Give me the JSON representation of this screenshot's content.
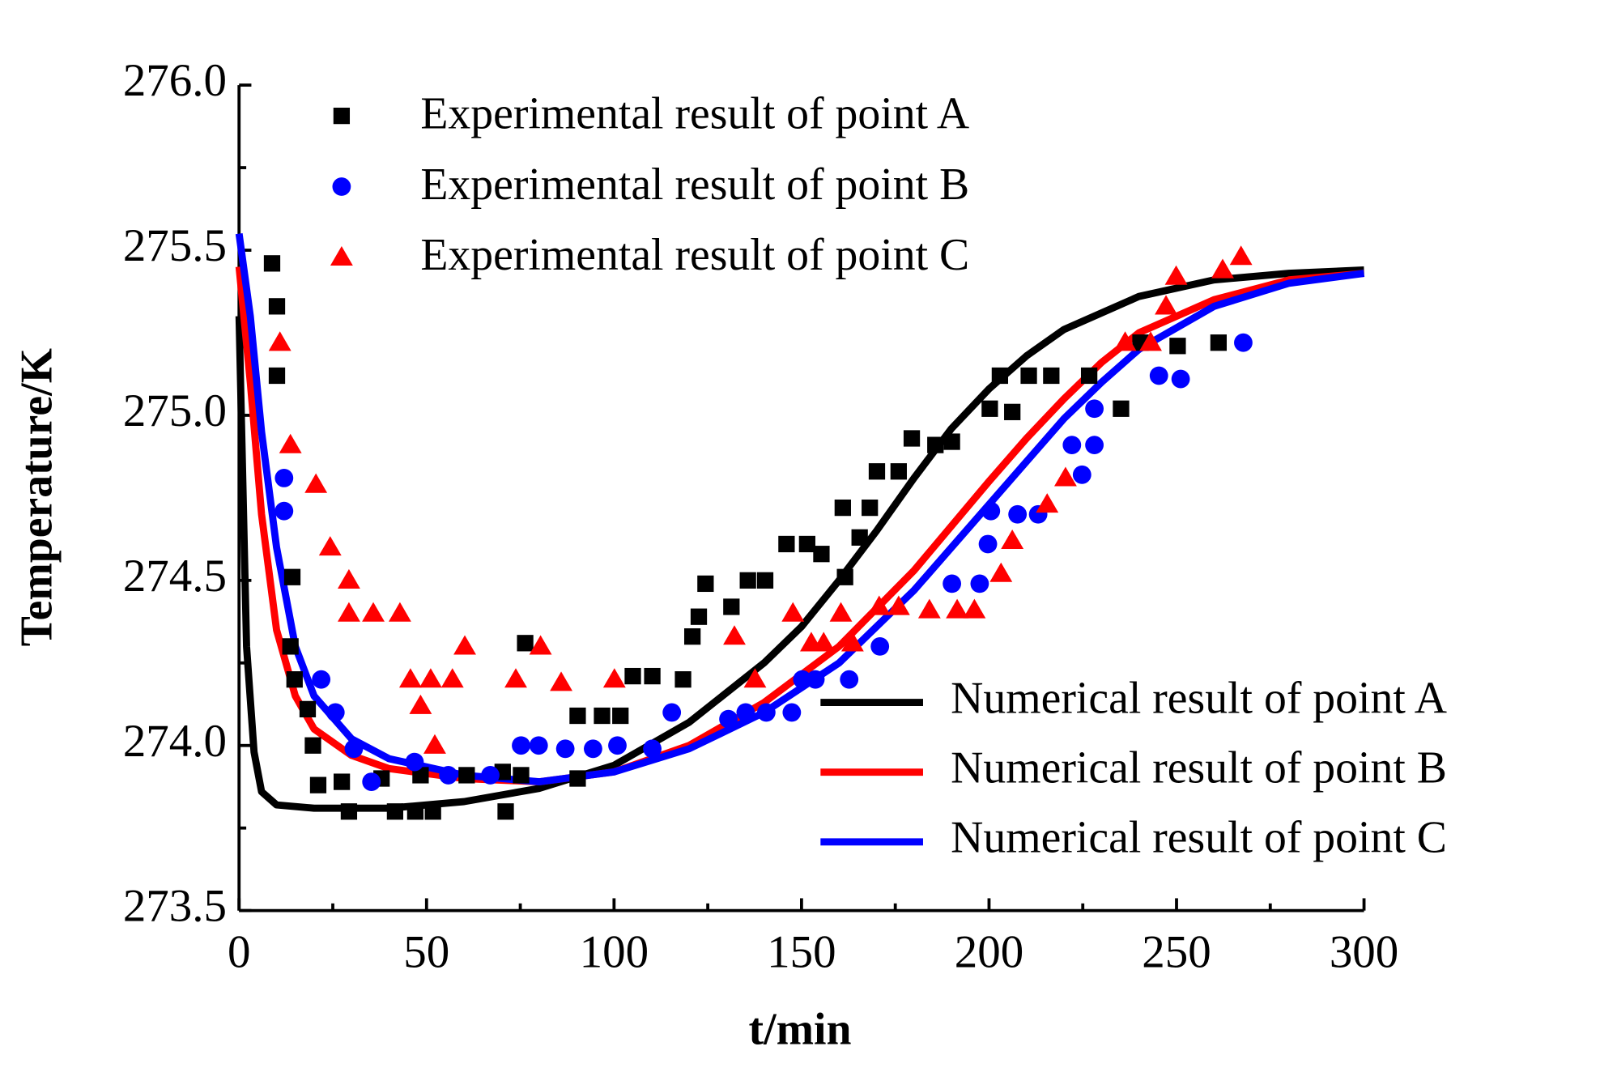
{
  "chart_data": {
    "type": "scatter",
    "x_label": "t/min",
    "y_label": "Temperature/K",
    "xlim": [
      0,
      300
    ],
    "ylim": [
      273.5,
      276
    ],
    "xticks": [
      0,
      50,
      100,
      150,
      200,
      250,
      300
    ],
    "yticks": [
      {
        "value": 273.5,
        "label": "273.5"
      },
      {
        "value": 274,
        "label": "274.0"
      },
      274.5,
      {
        "value": 275,
        "label": "275.0"
      },
      275.5,
      {
        "value": 276,
        "label": "276.0"
      }
    ],
    "series": [
      {
        "name": "Experimental result of point A",
        "kind": "scatter",
        "marker": "square",
        "color": "#000000",
        "x": [
          8.8,
          10.1,
          10.1,
          14.2,
          13.7,
          14.8,
          18.3,
          19.7,
          21.1,
          27.4,
          29.3,
          38.0,
          41.6,
          47.0,
          51.7,
          48.4,
          60.7,
          70.3,
          71.1,
          75.2,
          76.3,
          90.3,
          90.3,
          96.8,
          101.7,
          105,
          110.2,
          118.4,
          120.9,
          122.6,
          124.4,
          131.3,
          135.7,
          140.3,
          146.0,
          151.5,
          155.3,
          161,
          161.6,
          165.5,
          168.2,
          170.1,
          175.9,
          179.4,
          185.7,
          190.1,
          200.2,
          202.9,
          206.2,
          210.6,
          216.6,
          226.7,
          235.2,
          240.4,
          250.3,
          261.2
        ],
        "values": [
          275.46,
          275.33,
          275.12,
          274.51,
          274.3,
          274.2,
          274.11,
          274.0,
          273.88,
          273.89,
          273.8,
          273.9,
          273.8,
          273.8,
          273.8,
          273.91,
          273.91,
          273.92,
          273.8,
          273.91,
          274.31,
          273.9,
          274.09,
          274.09,
          274.09,
          274.21,
          274.21,
          274.2,
          274.33,
          274.39,
          274.49,
          274.42,
          274.5,
          274.5,
          274.61,
          274.61,
          274.58,
          274.72,
          274.51,
          274.63,
          274.72,
          274.83,
          274.83,
          274.93,
          274.91,
          274.92,
          275.02,
          275.12,
          275.01,
          275.12,
          275.12,
          275.12,
          275.02,
          275.22,
          275.21,
          275.22
        ]
      },
      {
        "name": "Experimental result of point B",
        "kind": "scatter",
        "marker": "circle",
        "color": "#0000ff",
        "x": [
          12.0,
          12.0,
          21.9,
          25.7,
          30.6,
          35.3,
          46.8,
          55.8,
          67.0,
          75.2,
          79.9,
          87.0,
          94.4,
          100.9,
          110.2,
          115.4,
          130.5,
          135.1,
          140.6,
          147.4,
          150.2,
          153.7,
          162.7,
          170.9,
          190.1,
          197.5,
          199.7,
          200.5,
          207.6,
          213.1,
          222.1,
          224.8,
          228.1,
          228.1,
          245.3,
          251.1,
          267.8
        ],
        "values": [
          274.81,
          274.71,
          274.2,
          274.1,
          273.99,
          273.89,
          273.95,
          273.91,
          273.91,
          274.0,
          274.0,
          273.99,
          273.99,
          274.0,
          273.99,
          274.1,
          274.08,
          274.1,
          274.1,
          274.1,
          274.2,
          274.2,
          274.2,
          274.3,
          274.49,
          274.49,
          274.61,
          274.71,
          274.7,
          274.7,
          274.91,
          274.82,
          274.91,
          275.02,
          275.12,
          275.11,
          275.22
        ]
      },
      {
        "name": "Experimental result of point C",
        "kind": "scatter",
        "marker": "triangle",
        "color": "#ff0000",
        "x": [
          10.9,
          13.7,
          20.5,
          24.3,
          29.3,
          29.3,
          35.8,
          42.9,
          45.7,
          48.4,
          51.1,
          52.2,
          56.9,
          60.2,
          73.8,
          80.4,
          85.9,
          100.1,
          132.1,
          137.6,
          147.7,
          152.6,
          155.9,
          160.5,
          163.6,
          170.7,
          175.9,
          184.1,
          191.5,
          196.1,
          203.2,
          206.2,
          215.5,
          220.4,
          236.3,
          243.1,
          247.2,
          249.9,
          262.3,
          267.2
        ],
        "values": [
          275.22,
          274.91,
          274.79,
          274.6,
          274.5,
          274.4,
          274.4,
          274.4,
          274.2,
          274.12,
          274.2,
          274.0,
          274.2,
          274.3,
          274.2,
          274.3,
          274.19,
          274.2,
          274.33,
          274.2,
          274.4,
          274.31,
          274.31,
          274.4,
          274.31,
          274.42,
          274.42,
          274.41,
          274.41,
          274.41,
          274.52,
          274.62,
          274.73,
          274.81,
          275.22,
          275.22,
          275.33,
          275.42,
          275.44,
          275.48
        ]
      },
      {
        "name": "Numerical result of point A",
        "kind": "line",
        "color": "#000000",
        "x": [
          0,
          1,
          2,
          4,
          6,
          10,
          20,
          40,
          60,
          80,
          100,
          120,
          140,
          150,
          160,
          170,
          180,
          190,
          200,
          210,
          220,
          240,
          260,
          280,
          300
        ],
        "values": [
          275.3,
          274.8,
          274.3,
          273.98,
          273.86,
          273.82,
          273.81,
          273.81,
          273.83,
          273.87,
          273.94,
          274.07,
          274.25,
          274.36,
          274.5,
          274.65,
          274.81,
          274.96,
          275.08,
          275.18,
          275.26,
          275.36,
          275.41,
          275.43,
          275.44
        ]
      },
      {
        "name": "Numerical result of point B",
        "kind": "line",
        "color": "#ff0000",
        "x": [
          0,
          3,
          6,
          10,
          15,
          20,
          30,
          40,
          60,
          80,
          100,
          120,
          140,
          160,
          180,
          200,
          210,
          220,
          230,
          240,
          260,
          280,
          300
        ],
        "values": [
          275.45,
          275.1,
          274.7,
          274.35,
          274.15,
          274.05,
          273.97,
          273.93,
          273.9,
          273.89,
          273.92,
          274.0,
          274.13,
          274.3,
          274.53,
          274.8,
          274.93,
          275.05,
          275.16,
          275.25,
          275.35,
          275.41,
          275.43
        ]
      },
      {
        "name": "Numerical result of point C",
        "kind": "line",
        "color": "#0000ff",
        "x": [
          0,
          3,
          6,
          10,
          15,
          20,
          30,
          40,
          60,
          80,
          100,
          120,
          140,
          160,
          180,
          200,
          210,
          220,
          230,
          240,
          260,
          280,
          300
        ],
        "values": [
          275.55,
          275.3,
          274.95,
          274.6,
          274.3,
          274.15,
          274.02,
          273.96,
          273.91,
          273.89,
          273.92,
          273.99,
          274.1,
          274.25,
          274.47,
          274.73,
          274.86,
          274.99,
          275.1,
          275.2,
          275.33,
          275.4,
          275.43
        ]
      }
    ]
  }
}
